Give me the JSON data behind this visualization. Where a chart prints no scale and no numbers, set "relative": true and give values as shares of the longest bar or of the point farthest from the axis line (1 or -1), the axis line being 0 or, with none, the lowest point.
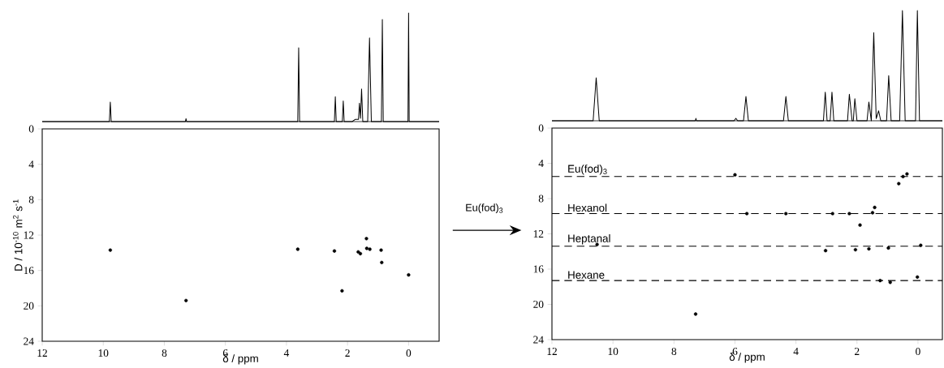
{
  "chart_data": [
    {
      "type": "line",
      "relative": true,
      "tick_labels": false,
      "xlim": [
        12,
        -1
      ],
      "color": "#000000",
      "x": [
        12.0,
        9.8,
        9.77,
        9.74,
        7.31,
        7.29,
        7.27,
        3.63,
        3.6,
        3.57,
        2.43,
        2.4,
        2.37,
        2.17,
        2.14,
        2.11,
        1.85,
        1.75,
        1.64,
        1.61,
        1.575,
        1.54,
        1.5,
        1.34,
        1.28,
        1.22,
        0.89,
        0.86,
        0.83,
        0.02,
        0.0,
        -0.02,
        -1.0
      ],
      "values": [
        0,
        0,
        0.18,
        0,
        0,
        0.027,
        0,
        0,
        0.68,
        0,
        0,
        0.23,
        0,
        0,
        0.19,
        0,
        0,
        0.02,
        0.02,
        0.17,
        0.03,
        0.3,
        0,
        0,
        0.77,
        0,
        0,
        0.94,
        0,
        0,
        1.0,
        0,
        0
      ]
    },
    {
      "type": "scatter",
      "xlabel": "δ / ppm",
      "ylabel": "D / 10$^{-10}$ m$^{2}$ s$^{-1}$",
      "xlim": [
        12,
        -1
      ],
      "ylim": [
        24,
        0
      ],
      "xticks": [
        12,
        10,
        8,
        6,
        4,
        2,
        0
      ],
      "yticks": [
        0,
        4,
        8,
        12,
        16,
        20,
        24
      ],
      "color": "#000000",
      "x": [
        9.77,
        7.29,
        3.63,
        2.43,
        2.18,
        1.65,
        1.58,
        1.38,
        1.37,
        1.27,
        0.9,
        0.88,
        0.0
      ],
      "values": [
        13.7,
        19.4,
        13.6,
        13.8,
        18.3,
        13.9,
        14.1,
        12.4,
        13.5,
        13.6,
        13.7,
        15.1,
        16.5
      ]
    },
    {
      "type": "line",
      "relative": true,
      "tick_labels": false,
      "xlim": [
        12,
        -0.8
      ],
      "color": "#000000",
      "x": [
        12.0,
        10.65,
        10.55,
        10.45,
        7.3,
        7.28,
        7.26,
        6.03,
        5.97,
        5.91,
        5.72,
        5.64,
        5.56,
        4.41,
        4.33,
        4.25,
        3.1,
        3.04,
        2.98,
        2.88,
        2.82,
        2.76,
        2.31,
        2.25,
        2.16,
        2.12,
        2.07,
        2.0,
        1.67,
        1.61,
        1.53,
        1.45,
        1.37,
        1.29,
        1.22,
        1.03,
        0.96,
        0.88,
        0.6,
        0.51,
        0.42,
        0.08,
        0.02,
        -0.05,
        -0.8
      ],
      "values": [
        0,
        0,
        0.39,
        0,
        0,
        0.022,
        0,
        0,
        0.022,
        0,
        0,
        0.22,
        0,
        0,
        0.22,
        0,
        0,
        0.26,
        0,
        0,
        0.26,
        0,
        0,
        0.24,
        0,
        0,
        0.2,
        0,
        0,
        0.17,
        0,
        0.8,
        0.02,
        0.09,
        0,
        0,
        0.41,
        0,
        0,
        1.0,
        0,
        0,
        1.0,
        0,
        0
      ]
    },
    {
      "type": "scatter",
      "xlabel": "δ / ppm",
      "xlim": [
        12,
        -0.8
      ],
      "ylim": [
        24,
        0
      ],
      "xticks": [
        12,
        10,
        8,
        6,
        4,
        2,
        0
      ],
      "yticks": [
        0,
        4,
        8,
        12,
        16,
        20,
        24
      ],
      "color": "#000000",
      "x": [
        6.0,
        0.49,
        0.36,
        0.63,
        5.61,
        4.33,
        2.8,
        2.25,
        1.49,
        1.42,
        1.9,
        10.52,
        3.03,
        2.05,
        1.61,
        0.97,
        -0.09,
        1.24,
        0.91,
        0.02,
        7.29
      ],
      "values": [
        5.3,
        5.5,
        5.2,
        6.3,
        9.7,
        9.7,
        9.7,
        9.7,
        9.6,
        9.0,
        11.0,
        13.2,
        13.9,
        13.8,
        13.7,
        13.6,
        13.3,
        17.3,
        17.5,
        16.9,
        21.1
      ],
      "ref_lines": [
        {
          "axis": "y",
          "value": 5.5,
          "label": "Eu(fod)$_{3}$",
          "line_style": "dashed"
        },
        {
          "axis": "y",
          "value": 9.7,
          "label": "Hexanol",
          "line_style": "dashed"
        },
        {
          "axis": "y",
          "value": 13.4,
          "label": "Heptanal",
          "line_style": "dashed"
        },
        {
          "axis": "y",
          "value": 17.3,
          "label": "Hexane",
          "line_style": "dashed"
        }
      ],
      "annotations": [
        "Eu(fod)$_{3}$"
      ]
    }
  ]
}
